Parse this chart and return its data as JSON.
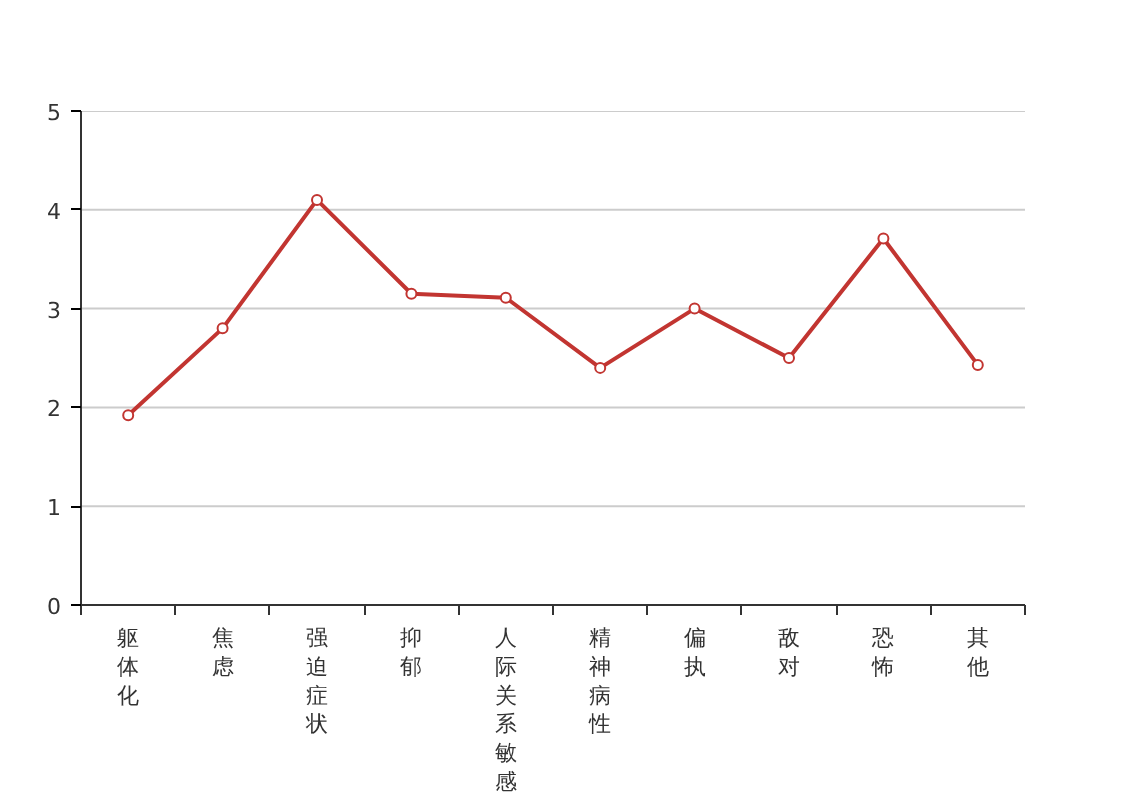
{
  "chart_data": {
    "type": "line",
    "categories": [
      "躯体化",
      "焦虑",
      "强迫症状",
      "抑郁",
      "人际关系敏感",
      "精神病性",
      "偏执",
      "敌对",
      "恐怖",
      "其他"
    ],
    "series": [
      {
        "color": "#c23531",
        "values": [
          1.92,
          2.8,
          4.1,
          3.15,
          3.11,
          2.4,
          3.0,
          2.5,
          3.71,
          2.43
        ]
      }
    ],
    "ylim": [
      0,
      5
    ],
    "yticks": [
      0,
      1,
      2,
      3,
      4,
      5
    ],
    "grid": "y",
    "marker": "circle",
    "line_style": "solid"
  }
}
